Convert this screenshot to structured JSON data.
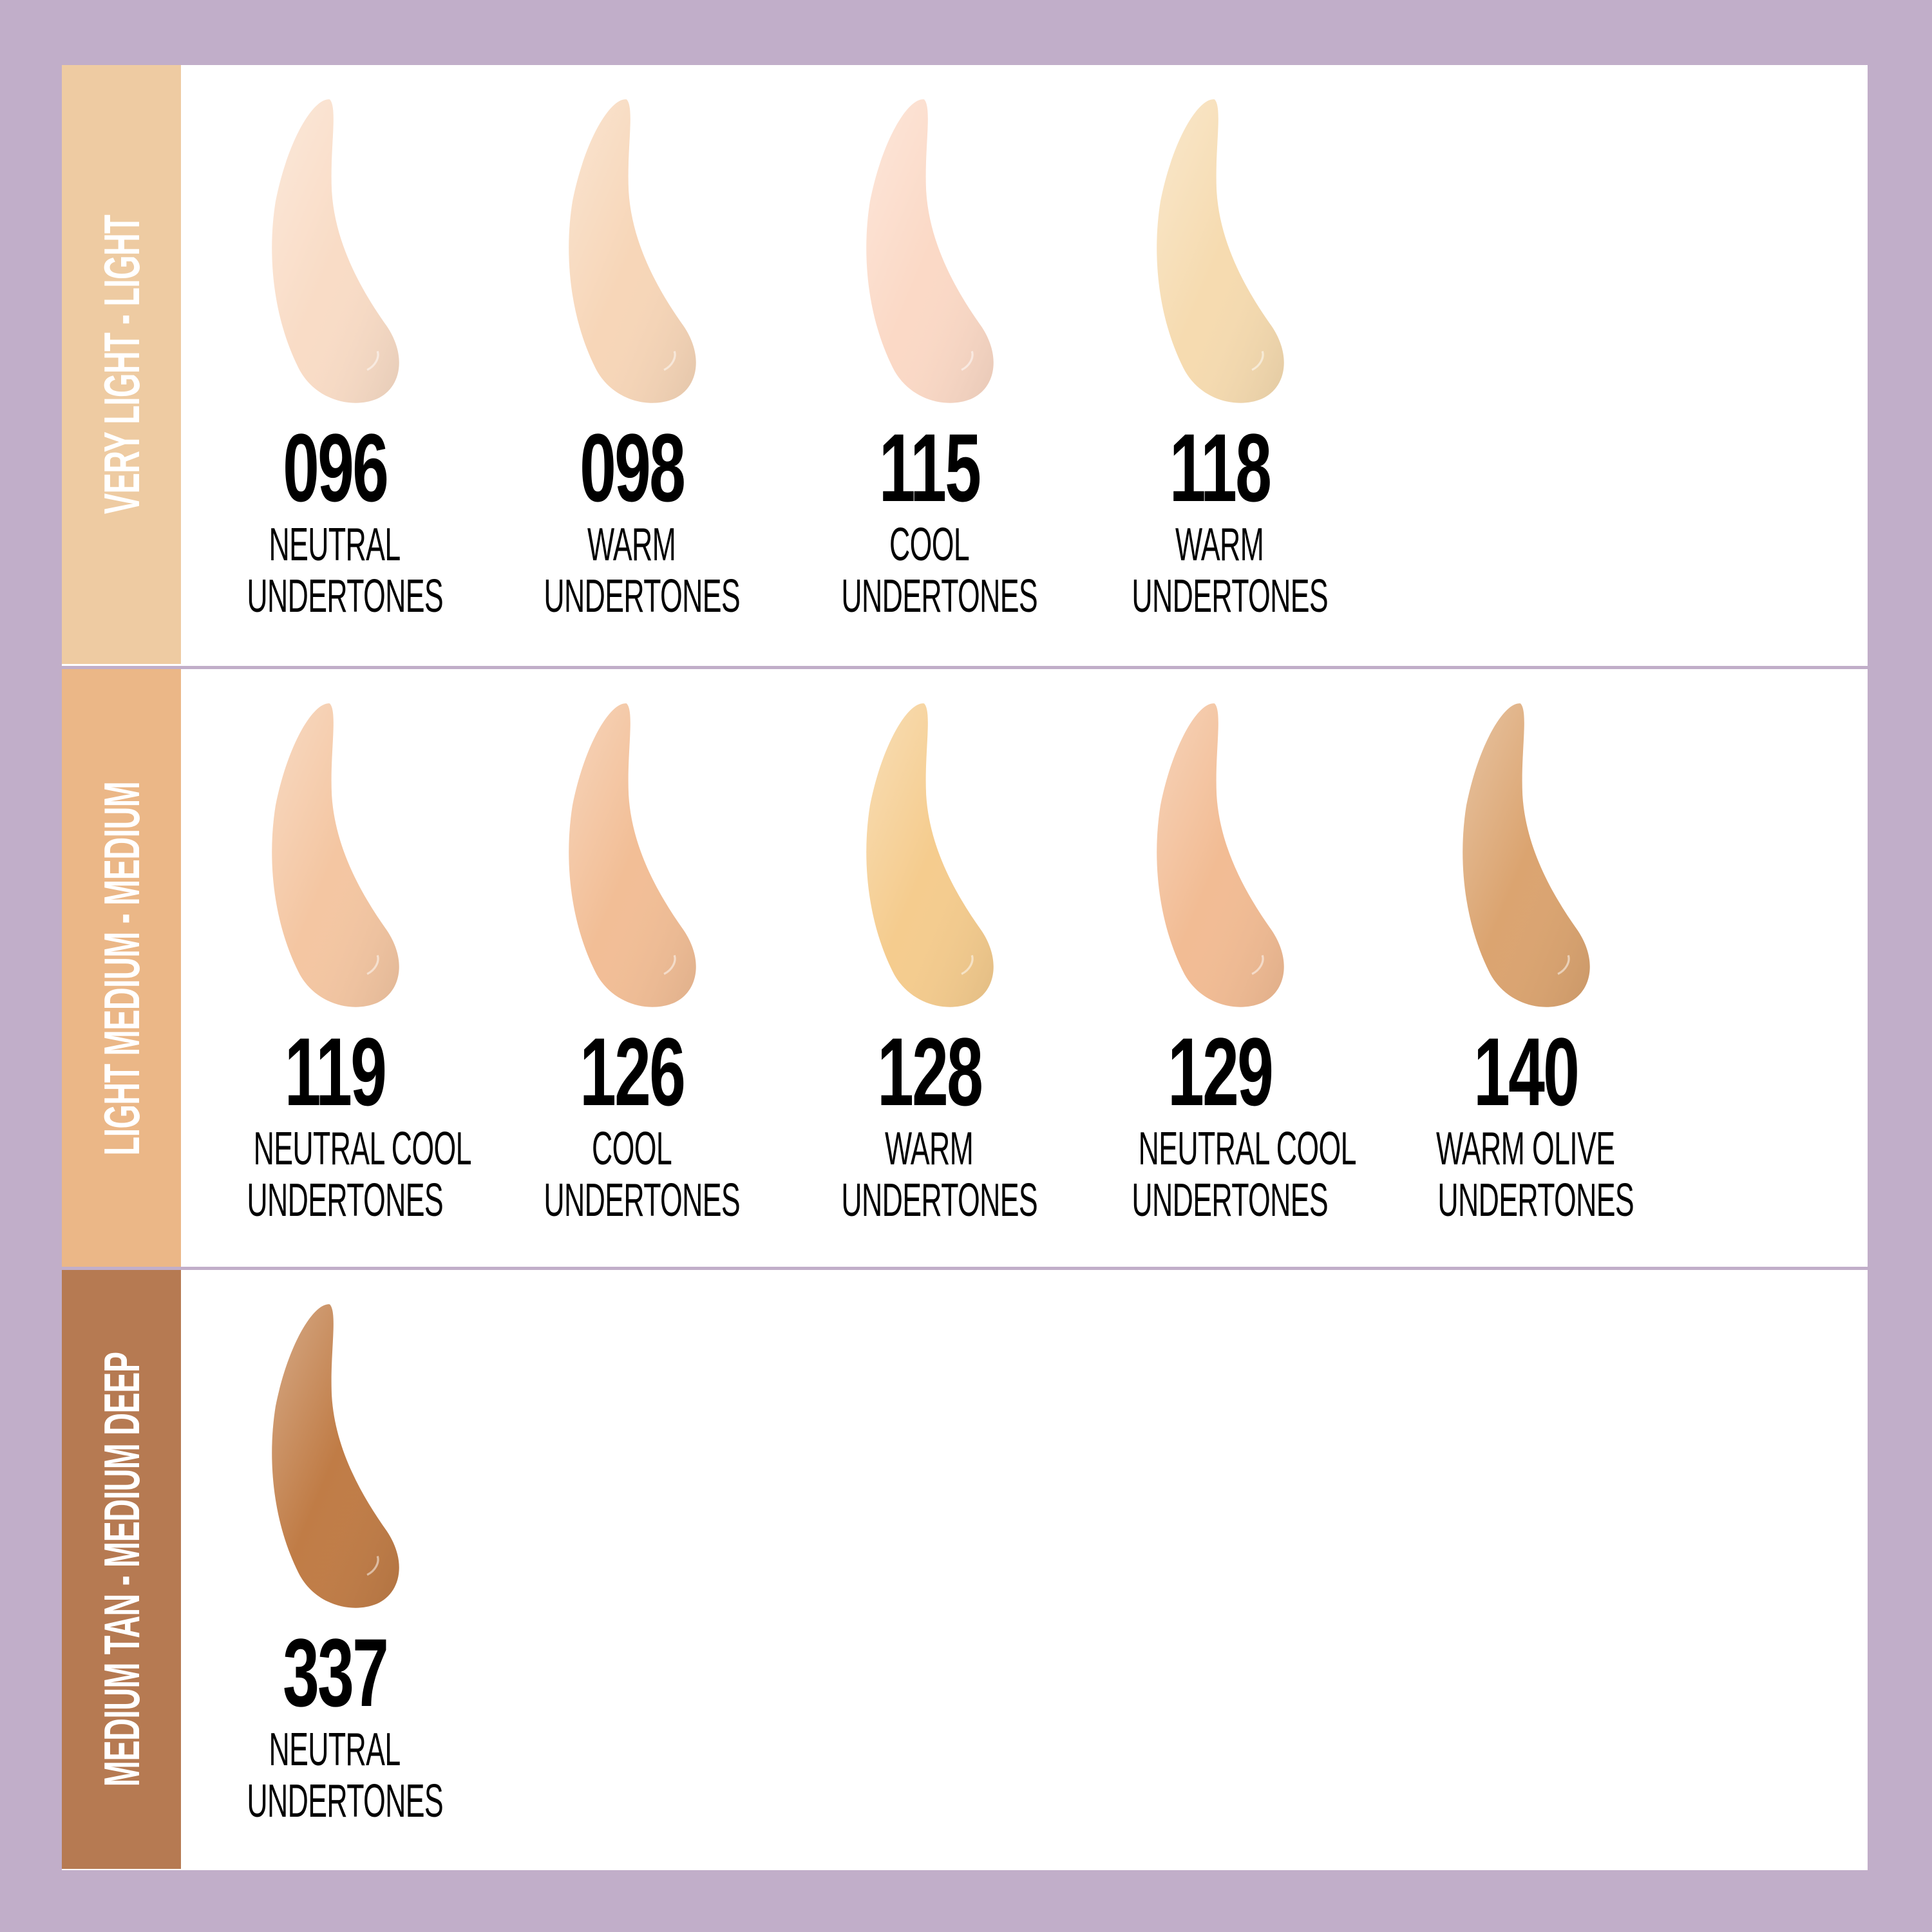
{
  "colors": {
    "background": "#c1aec9",
    "panel": "#ffffff"
  },
  "rows": [
    {
      "label": "VERY LIGHT - LIGHT",
      "band_color": "#eecba2",
      "shades": [
        {
          "number": "096",
          "line1": "NEUTRAL",
          "line2": "UNDERTONES",
          "color": "#f9dcc6"
        },
        {
          "number": "098",
          "line1": "WARM",
          "line2": "UNDERTONES",
          "color": "#f7d6b8"
        },
        {
          "number": "115",
          "line1": "COOL",
          "line2": "UNDERTONES",
          "color": "#fbd9c6"
        },
        {
          "number": "118",
          "line1": "WARM",
          "line2": "UNDERTONES",
          "color": "#f6dbb0"
        }
      ]
    },
    {
      "label": "LIGHT MEDIUM - MEDIUM",
      "band_color": "#ebb787",
      "shades": [
        {
          "number": "119",
          "line1": "NEUTRAL COOL",
          "line2": "UNDERTONES",
          "color": "#f4c6a2"
        },
        {
          "number": "126",
          "line1": "COOL",
          "line2": "UNDERTONES",
          "color": "#f2be96"
        },
        {
          "number": "128",
          "line1": "WARM",
          "line2": "UNDERTONES",
          "color": "#f5cc8e"
        },
        {
          "number": "129",
          "line1": "NEUTRAL COOL",
          "line2": "UNDERTONES",
          "color": "#f2bc94"
        },
        {
          "number": "140",
          "line1": "WARM OLIVE",
          "line2": "UNDERTONES",
          "color": "#dba470"
        }
      ]
    },
    {
      "label": "MEDIUM TAN - MEDIUM DEEP",
      "band_color": "#b67a52",
      "shades": [
        {
          "number": "337",
          "line1": "NEUTRAL",
          "line2": "UNDERTONES",
          "color": "#c07c46"
        }
      ]
    }
  ]
}
